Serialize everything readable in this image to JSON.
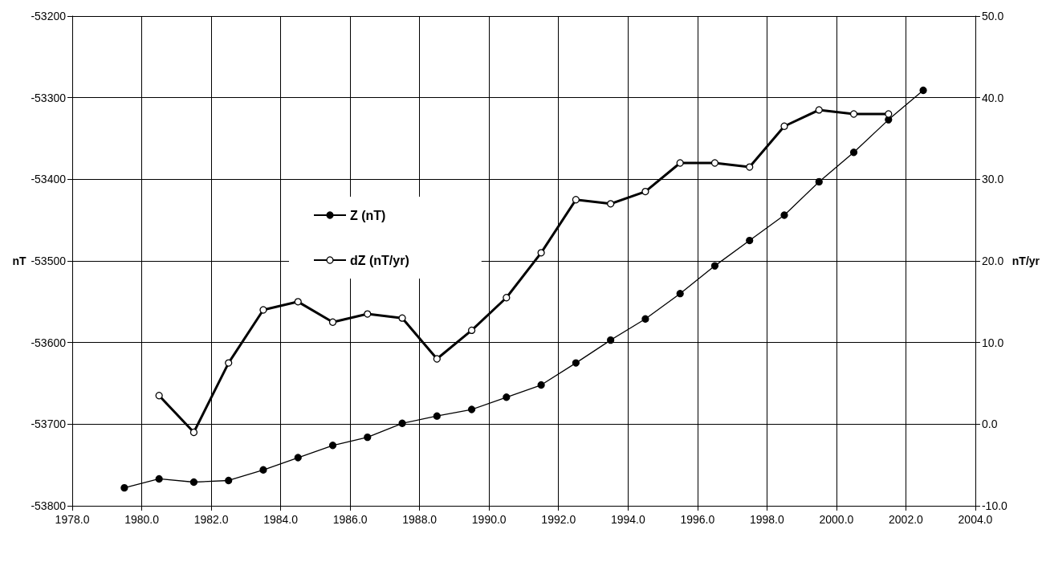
{
  "chart_data": {
    "type": "line",
    "ylabel": "nT",
    "y2label": "nT/yr",
    "xlim": [
      1978,
      2004
    ],
    "xticks": [
      {
        "value": 1978,
        "label": "1978.0"
      },
      {
        "value": 1980,
        "label": "1980.0"
      },
      {
        "value": 1982,
        "label": "1982.0"
      },
      {
        "value": 1984,
        "label": "1984.0"
      },
      {
        "value": 1986,
        "label": "1986.0"
      },
      {
        "value": 1988,
        "label": "1988.0"
      },
      {
        "value": 1990,
        "label": "1990.0"
      },
      {
        "value": 1992,
        "label": "1992.0"
      },
      {
        "value": 1994,
        "label": "1994.0"
      },
      {
        "value": 1996,
        "label": "1996.0"
      },
      {
        "value": 1998,
        "label": "1998.0"
      },
      {
        "value": 2000,
        "label": "2000.0"
      },
      {
        "value": 2002,
        "label": "2002.0"
      },
      {
        "value": 2004,
        "label": "2004.0"
      }
    ],
    "ylim": [
      -53800,
      -53200
    ],
    "yticks": [
      -53800,
      -53700,
      -53600,
      -53500,
      -53400,
      -53300,
      -53200
    ],
    "y2lim": [
      -10,
      50
    ],
    "y2ticks": [
      {
        "value": -10,
        "label": "-10.0"
      },
      {
        "value": 0,
        "label": "0.0"
      },
      {
        "value": 10,
        "label": "10.0"
      },
      {
        "value": 20,
        "label": "20.0"
      },
      {
        "value": 30,
        "label": "30.0"
      },
      {
        "value": 40,
        "label": "40.0"
      },
      {
        "value": 50,
        "label": "50.0"
      }
    ],
    "grid": true,
    "legend": "top left",
    "line_style": "solid",
    "series": [
      {
        "name": "Z (nT)",
        "color": "#000000",
        "marker": "circle",
        "x": [
          1979.5,
          1980.5,
          1981.5,
          1982.5,
          1983.5,
          1984.5,
          1985.5,
          1986.5,
          1987.5,
          1988.5,
          1989.5,
          1990.5,
          1991.5,
          1992.5,
          1993.5,
          1994.5,
          1995.5,
          1996.5,
          1997.5,
          1998.5,
          1999.5,
          2000.5,
          2001.5,
          2002.5
        ],
        "values": [
          -53778,
          -53767,
          -53771,
          -53769,
          -53756,
          -53741,
          -53726,
          -53716,
          -53699,
          -53690,
          -53682,
          -53667,
          -53652,
          -53625,
          -53597,
          -53571,
          -53540,
          -53506,
          -53475,
          -53444,
          -53403,
          -53367,
          -53327,
          -53291
        ]
      },
      {
        "name": "dZ (nT/yr)",
        "color": "#000000",
        "marker": "circle",
        "axis": "y2",
        "x": [
          1980.5,
          1981.5,
          1982.5,
          1983.5,
          1984.5,
          1985.5,
          1986.5,
          1987.5,
          1988.5,
          1989.5,
          1990.5,
          1991.5,
          1992.5,
          1993.5,
          1994.5,
          1995.5,
          1996.5,
          1997.5,
          1998.5,
          1999.5,
          2000.5,
          2001.5
        ],
        "values": [
          3.5,
          -1.0,
          7.5,
          14.0,
          15.0,
          12.5,
          13.5,
          13.0,
          8.0,
          11.5,
          15.5,
          21.0,
          27.5,
          27.0,
          28.5,
          32.0,
          32.0,
          31.5,
          36.5,
          38.5,
          38.0,
          38.0
        ]
      }
    ]
  }
}
